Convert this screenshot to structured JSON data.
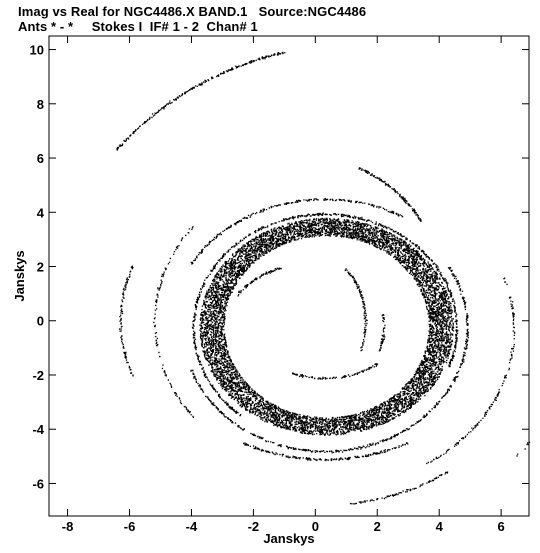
{
  "header": {
    "line1": "Imag vs Real for NGC4486.X BAND.1   Source:NGC4486",
    "line2": "Ants * - *     Stokes I  IF# 1 - 2  Chan# 1"
  },
  "chart_data": {
    "type": "scatter",
    "title": "Imag vs Real for NGC4486.X BAND.1   Source:NGC4486",
    "subtitle": "Ants * - *     Stokes I  IF# 1 - 2  Chan# 1",
    "xlabel": "Janskys",
    "ylabel": "Janskys",
    "xlim": [
      -8.6,
      6.9
    ],
    "ylim": [
      -7.2,
      10.5
    ],
    "xticks": [
      -8,
      -6,
      -4,
      -2,
      0,
      2,
      4,
      6
    ],
    "yticks": [
      -6,
      -4,
      -2,
      0,
      2,
      4,
      6,
      8,
      10
    ],
    "grid": false,
    "point_color": "#000000",
    "components": [
      {
        "kind": "dense_ring",
        "center": [
          0.35,
          -0.2
        ],
        "rx_inner": 3.3,
        "rx_outer": 4.1,
        "ry_inner": 3.35,
        "ry_outer": 4.0,
        "approx_points": 9000
      },
      {
        "kind": "arc",
        "center": [
          0.3,
          -0.25
        ],
        "rx": 4.25,
        "ry": 4.2,
        "angle_deg": [
          -20,
          230
        ],
        "approx_points": 700
      },
      {
        "kind": "arc",
        "center": [
          0.3,
          -0.25
        ],
        "rx": 4.6,
        "ry": 4.55,
        "angle_deg": [
          -160,
          30
        ],
        "approx_points": 500
      },
      {
        "kind": "arc",
        "center": [
          0.3,
          -0.3
        ],
        "rx": 5.0,
        "ry": 4.8,
        "angle_deg": [
          60,
          150
        ],
        "approx_points": 250
      },
      {
        "kind": "arc",
        "center": [
          0.3,
          -0.5
        ],
        "rx": 5.3,
        "ry": 4.6,
        "angle_deg": [
          -120,
          -60
        ],
        "approx_points": 200
      },
      {
        "kind": "arc",
        "center": [
          0.5,
          -0.3
        ],
        "rx": 5.9,
        "ry": 5.8,
        "angle_deg": [
          -60,
          20
        ],
        "approx_points": 150
      },
      {
        "kind": "arc",
        "center": [
          0.2,
          0.0
        ],
        "rx": 6.5,
        "ry": 6.0,
        "angle_deg": [
          160,
          200
        ],
        "approx_points": 100
      },
      {
        "kind": "arc",
        "center": [
          0.2,
          0.0
        ],
        "rx": 5.4,
        "ry": 5.5,
        "angle_deg": [
          140,
          220
        ],
        "approx_points": 120
      },
      {
        "kind": "arc",
        "center": [
          1.8,
          0.6
        ],
        "rx": 10.2,
        "ry": 9.7,
        "angle_deg": [
          106,
          144
        ],
        "approx_points": 260
      },
      {
        "kind": "arc",
        "center": [
          -0.5,
          1.0
        ],
        "rx": 4.6,
        "ry": 5.1,
        "angle_deg": [
          32,
          66
        ],
        "approx_points": 140
      },
      {
        "kind": "arc",
        "center": [
          0.1,
          -0.8
        ],
        "rx": 6.8,
        "ry": 6.0,
        "angle_deg": [
          -82,
          -52
        ],
        "approx_points": 90
      },
      {
        "kind": "arc",
        "center": [
          1.2,
          -0.8
        ],
        "rx": 6.9,
        "ry": 6.5,
        "angle_deg": [
          -40,
          0
        ],
        "approx_points": 60
      },
      {
        "kind": "arc",
        "center": [
          0.3,
          0.0
        ],
        "rx": 1.3,
        "ry": 2.2,
        "angle_deg": [
          -30,
          60
        ],
        "approx_points": 110
      },
      {
        "kind": "arc",
        "center": [
          -0.2,
          -0.2
        ],
        "rx": 2.7,
        "ry": 2.3,
        "angle_deg": [
          110,
          150
        ],
        "approx_points": 80
      },
      {
        "kind": "arc",
        "center": [
          0.3,
          -0.6
        ],
        "rx": 2.2,
        "ry": 1.5,
        "angle_deg": [
          -120,
          -40
        ],
        "approx_points": 90
      },
      {
        "kind": "arc",
        "center": [
          -0.2,
          -0.2
        ],
        "rx": 2.4,
        "ry": 2.6,
        "angle_deg": [
          -20,
          10
        ],
        "approx_points": 50
      }
    ]
  }
}
